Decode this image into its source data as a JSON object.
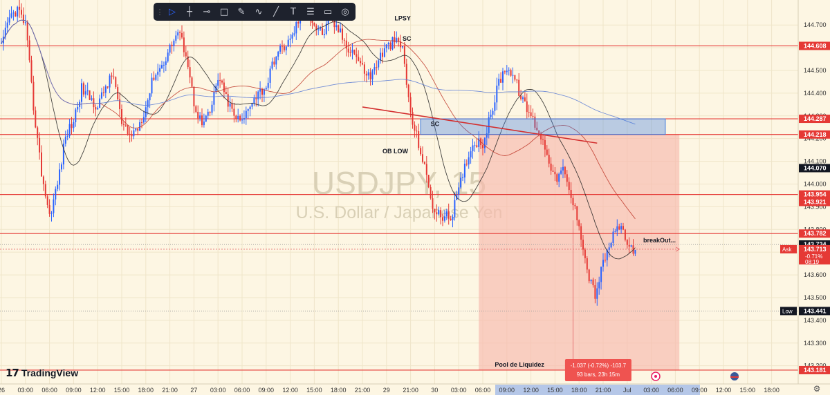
{
  "toolbar": {
    "tools": [
      {
        "name": "cursor-tool",
        "icon": "▷"
      },
      {
        "name": "crosshair-tool",
        "icon": "┼"
      },
      {
        "name": "horizontal-line-tool",
        "icon": "⊸"
      },
      {
        "name": "rectangle-tool",
        "icon": "□"
      },
      {
        "name": "brush-tool",
        "icon": "✎"
      },
      {
        "name": "path-tool",
        "icon": "∿"
      },
      {
        "name": "trend-line-tool",
        "icon": "╱"
      },
      {
        "name": "text-tool",
        "icon": "T"
      },
      {
        "name": "settings-tool",
        "icon": "☰"
      },
      {
        "name": "template-tool",
        "icon": "▭"
      },
      {
        "name": "hide-tool",
        "icon": "◎"
      }
    ]
  },
  "brand": {
    "logo_mark": "17",
    "name": "TradingView"
  },
  "settings_icon": "⚙",
  "chart_data": {
    "type": "candlestick",
    "watermark": {
      "symbol": "USDJPY, 15",
      "description": "U.S. Dollar / Japanese Yen"
    },
    "ylim": [
      143.12,
      144.81
    ],
    "y_ticks": [
      "144.700",
      "144.600",
      "144.500",
      "144.400",
      "144.300",
      "144.200",
      "144.100",
      "144.000",
      "143.900",
      "143.800",
      "143.700",
      "143.600",
      "143.500",
      "143.400",
      "143.300",
      "143.200"
    ],
    "y_tick_values": [
      144.7,
      144.6,
      144.5,
      144.4,
      144.3,
      144.2,
      144.1,
      144.0,
      143.9,
      143.8,
      143.7,
      143.6,
      143.5,
      143.4,
      143.3,
      143.2
    ],
    "x_ticks": [
      "26",
      "03:00",
      "06:00",
      "09:00",
      "12:00",
      "15:00",
      "18:00",
      "21:00",
      "27",
      "03:00",
      "06:00",
      "09:00",
      "12:00",
      "15:00",
      "18:00",
      "21:00",
      "29",
      "21:00",
      "30",
      "03:00",
      "06:00",
      "09:00",
      "12:00",
      "15:00",
      "18:00",
      "21:00",
      "Jul",
      "03:00",
      "06:00",
      "09:00",
      "12:00",
      "15:00",
      "18:00"
    ],
    "x_tick_bars": [
      0,
      12,
      24,
      36,
      48,
      60,
      72,
      84,
      96,
      108,
      120,
      132,
      144,
      156,
      168,
      180,
      192,
      204,
      216,
      228,
      240,
      252,
      264,
      276,
      288,
      300,
      312,
      324,
      336,
      348,
      360,
      372,
      384
    ],
    "horizontal_levels": [
      {
        "price": 144.608,
        "label": "144.608",
        "color": "#e53935"
      },
      {
        "price": 144.287,
        "label": "144.287",
        "color": "#e53935"
      },
      {
        "price": 144.218,
        "label": "144.218",
        "color": "#e53935"
      },
      {
        "price": 143.954,
        "label": "143.954",
        "color": "#e53935"
      },
      {
        "price": 143.782,
        "label": "143.782",
        "color": "#e53935"
      },
      {
        "price": 143.181,
        "label": "143.181",
        "color": "#e53935"
      }
    ],
    "axis_badges": [
      {
        "price": 144.07,
        "label": "144.070",
        "bg": "#131722",
        "fg": "#ffffff"
      },
      {
        "price": 143.921,
        "label": "143.921",
        "bg": "#e53935",
        "fg": "#ffffff"
      },
      {
        "price": 143.734,
        "label": "143.734",
        "bg": "#131722",
        "fg": "#ffffff"
      },
      {
        "price": 143.713,
        "label": "143.713",
        "bg": "#e53935",
        "fg": "#ffffff",
        "prefix": "Ask",
        "sub": "-0.71%",
        "sub2": "08:19"
      },
      {
        "price": 143.441,
        "label": "143.441",
        "bg": "#131722",
        "fg": "#ffffff",
        "prefix": "Low"
      }
    ],
    "annotations": [
      {
        "text": "LPSY",
        "price": 144.73,
        "bar": 196
      },
      {
        "text": "SC",
        "price": 144.64,
        "bar": 200
      },
      {
        "text": "SC",
        "price": 144.265,
        "bar": 214
      },
      {
        "text": "OB LOW",
        "price": 144.145,
        "bar": 190
      },
      {
        "text": "breakOut...",
        "price": 143.752,
        "bar": 320
      },
      {
        "text": "Pool de Liquidez",
        "price": 143.205,
        "bar": 246
      }
    ],
    "zone": {
      "price_top": 144.287,
      "price_bottom": 144.218,
      "bar_start": 209,
      "bar_end": 331,
      "color": "#3d7be0"
    },
    "short_position": {
      "price_top": 144.218,
      "price_bottom": 143.181,
      "bar_start": 238,
      "bar_end": 338
    },
    "measurement": {
      "line1": "-1.037 (-0.72%) -103.7",
      "line2": "93 bars, 23h 15m"
    },
    "trend_lines": [
      {
        "bar_start": 180,
        "price_start": 144.339,
        "bar_end": 297,
        "price_end": 144.18
      }
    ],
    "ohlc_anchors": [
      [
        0,
        144.6
      ],
      [
        4,
        144.73
      ],
      [
        8,
        144.77
      ],
      [
        12,
        144.7
      ],
      [
        16,
        144.34
      ],
      [
        20,
        144.05
      ],
      [
        24,
        143.86
      ],
      [
        28,
        144.0
      ],
      [
        32,
        144.21
      ],
      [
        36,
        144.28
      ],
      [
        40,
        144.42
      ],
      [
        44,
        144.38
      ],
      [
        48,
        144.34
      ],
      [
        52,
        144.43
      ],
      [
        56,
        144.48
      ],
      [
        60,
        144.26
      ],
      [
        64,
        144.21
      ],
      [
        68,
        144.25
      ],
      [
        72,
        144.34
      ],
      [
        76,
        144.48
      ],
      [
        80,
        144.52
      ],
      [
        84,
        144.6
      ],
      [
        88,
        144.67
      ],
      [
        92,
        144.58
      ],
      [
        96,
        144.36
      ],
      [
        100,
        144.26
      ],
      [
        104,
        144.31
      ],
      [
        108,
        144.47
      ],
      [
        112,
        144.38
      ],
      [
        116,
        144.3
      ],
      [
        120,
        144.27
      ],
      [
        124,
        144.36
      ],
      [
        128,
        144.4
      ],
      [
        132,
        144.43
      ],
      [
        136,
        144.55
      ],
      [
        140,
        144.6
      ],
      [
        144,
        144.63
      ],
      [
        148,
        144.72
      ],
      [
        152,
        144.78
      ],
      [
        156,
        144.7
      ],
      [
        160,
        144.66
      ],
      [
        164,
        144.72
      ],
      [
        168,
        144.68
      ],
      [
        172,
        144.61
      ],
      [
        176,
        144.58
      ],
      [
        180,
        144.51
      ],
      [
        184,
        144.47
      ],
      [
        188,
        144.55
      ],
      [
        192,
        144.6
      ],
      [
        196,
        144.63
      ],
      [
        200,
        144.6
      ],
      [
        204,
        144.3
      ],
      [
        208,
        144.18
      ],
      [
        212,
        144.03
      ],
      [
        216,
        143.87
      ],
      [
        220,
        143.86
      ],
      [
        224,
        143.85
      ],
      [
        228,
        143.97
      ],
      [
        232,
        144.11
      ],
      [
        236,
        144.19
      ],
      [
        240,
        144.18
      ],
      [
        244,
        144.3
      ],
      [
        248,
        144.45
      ],
      [
        252,
        144.52
      ],
      [
        256,
        144.46
      ],
      [
        260,
        144.36
      ],
      [
        264,
        144.3
      ],
      [
        268,
        144.23
      ],
      [
        272,
        144.14
      ],
      [
        276,
        144.02
      ],
      [
        280,
        144.06
      ],
      [
        284,
        143.94
      ],
      [
        288,
        143.83
      ],
      [
        292,
        143.62
      ],
      [
        296,
        143.51
      ],
      [
        300,
        143.65
      ],
      [
        304,
        143.75
      ],
      [
        308,
        143.82
      ],
      [
        312,
        143.73
      ],
      [
        316,
        143.71
      ]
    ]
  }
}
